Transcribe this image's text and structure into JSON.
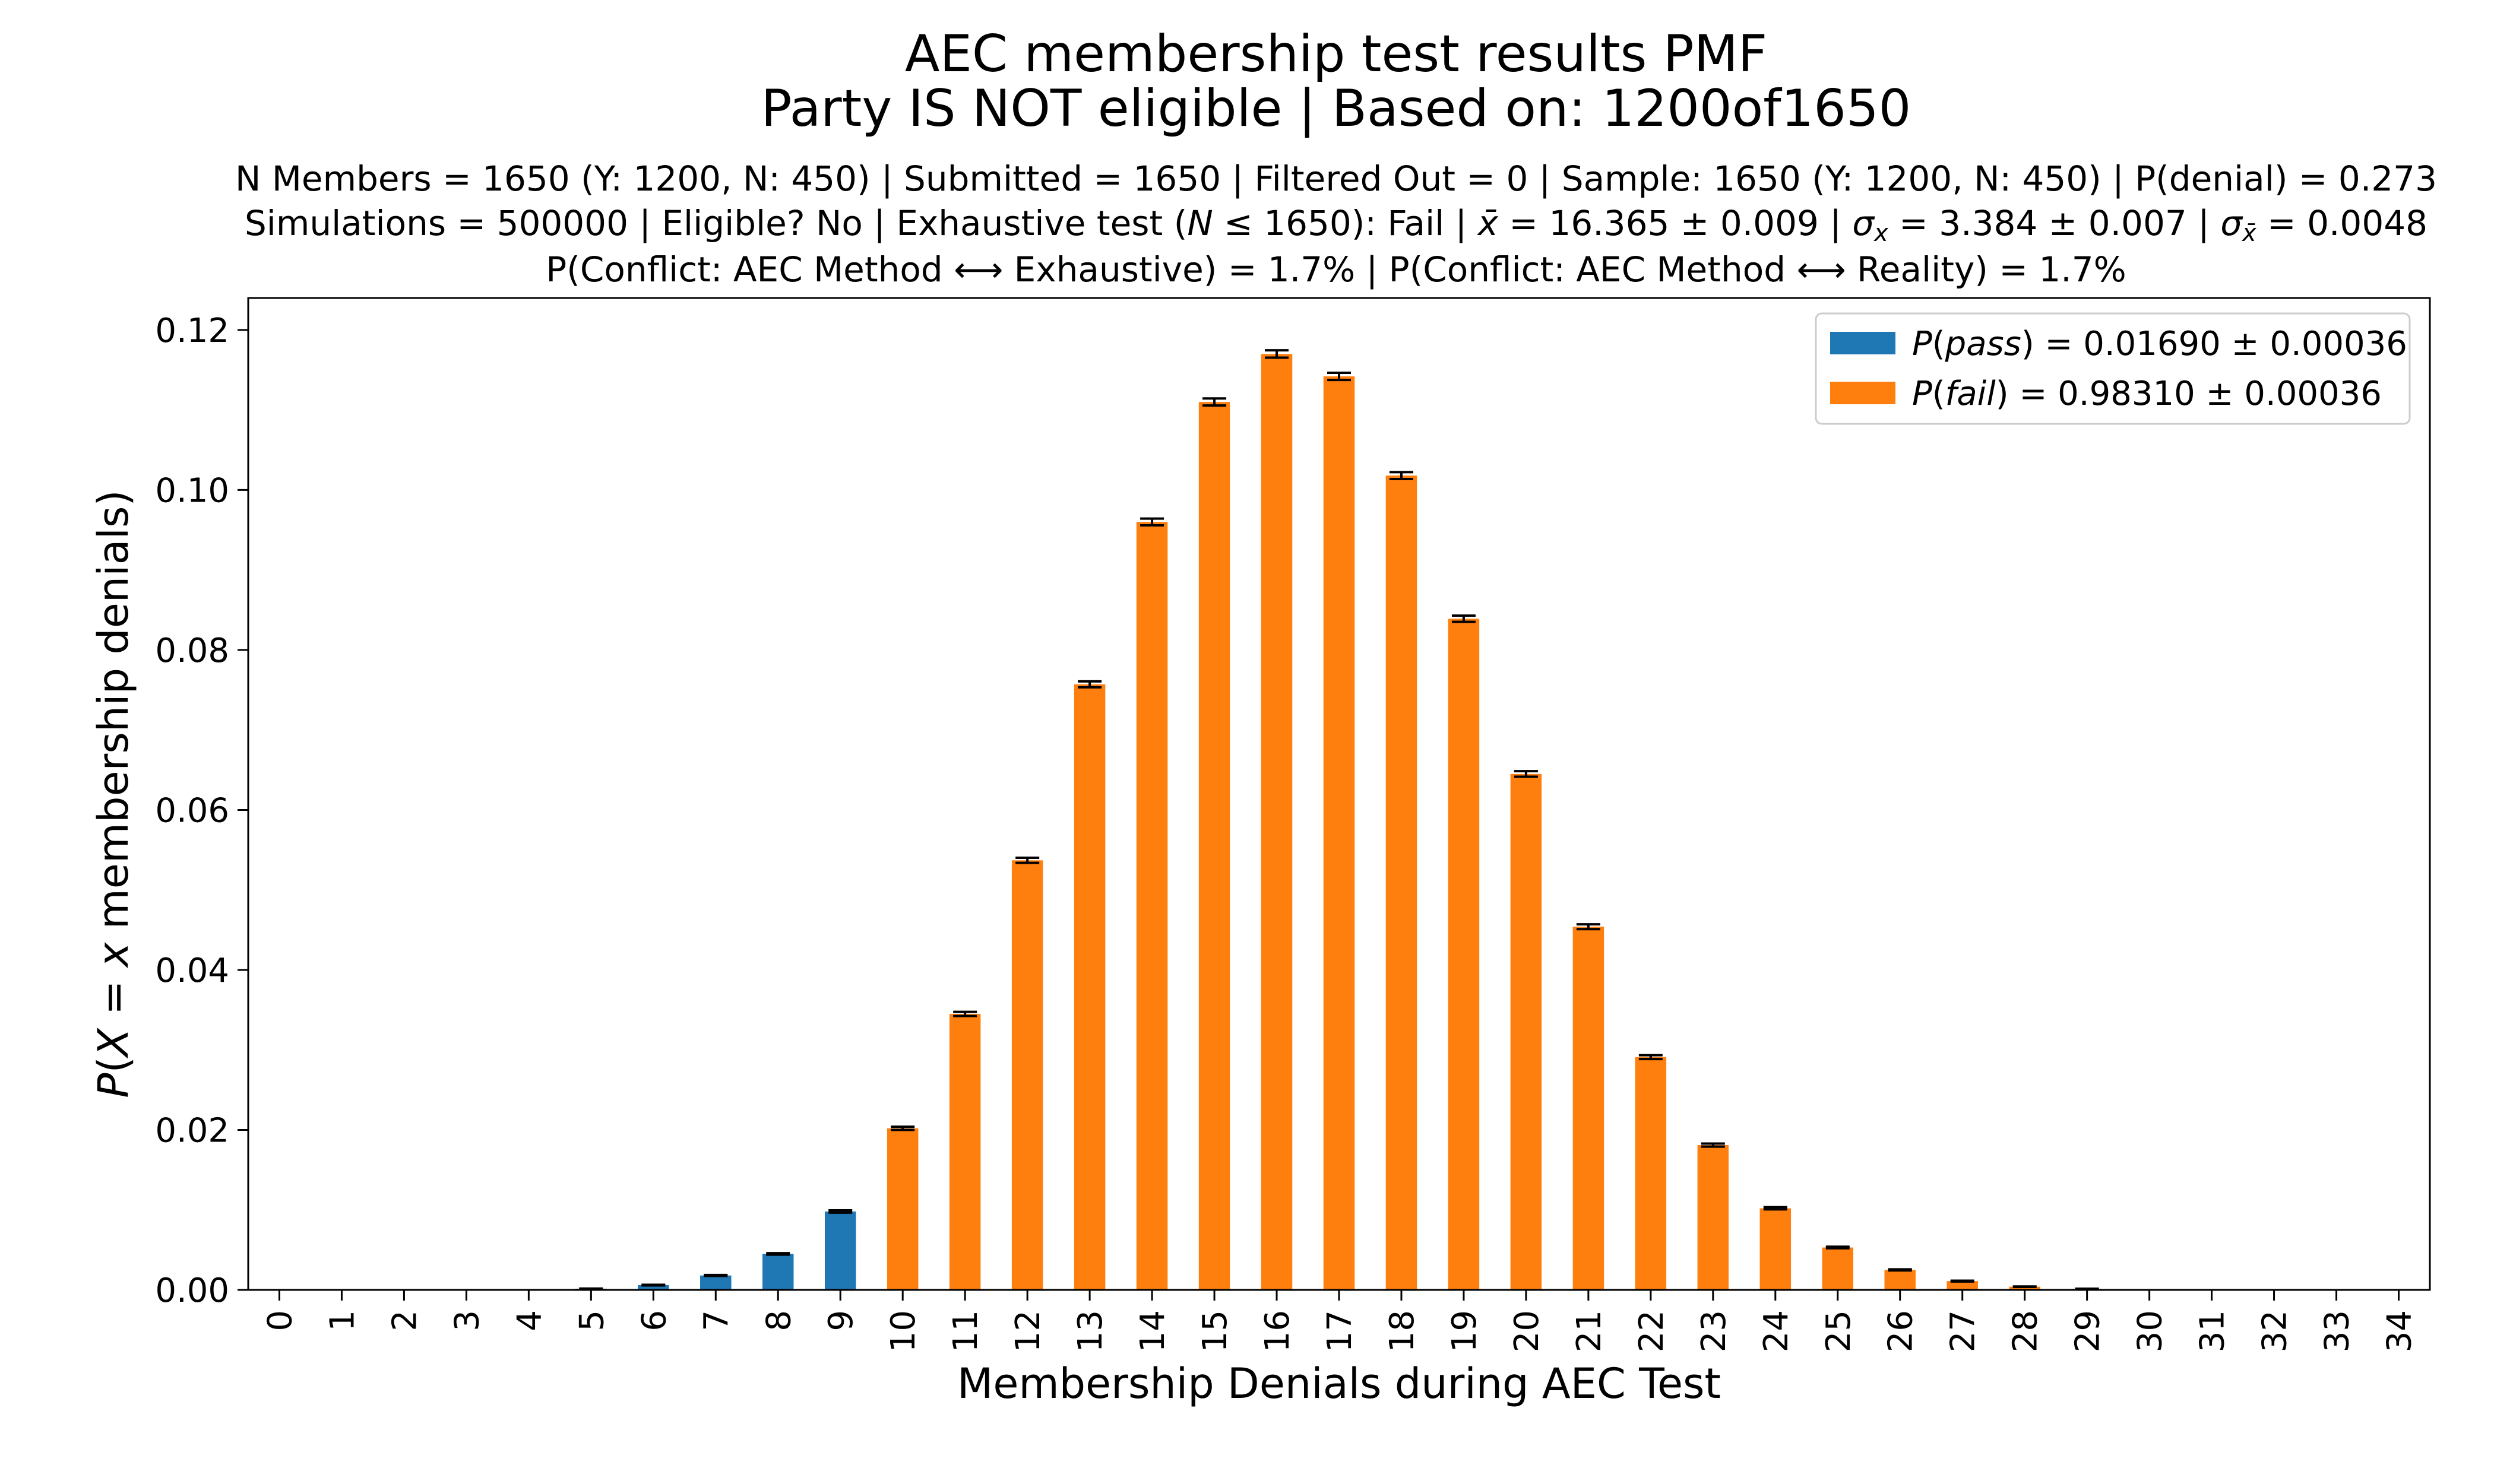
{
  "chart_data": {
    "type": "bar",
    "title": "AEC membership test results PMF",
    "subtitle": "Party IS NOT eligible | Based on: 1200of1650",
    "info_line_1": "N Members = 1650 (Y: 1200, N: 450) | Submitted = 1650 | Filtered Out = 0 | Sample: 1650 (Y: 1200, N: 450) | P(denial) = 0.273",
    "info_line_2": {
      "prefix": "Simulations = 500000 | Eligible? No | Exhaustive test (",
      "n_symbol": "N",
      "n_rel": " ≤ 1650): Fail | ",
      "xbar_symbol": "x̄",
      "xbar_value": " = 16.365 ± 0.009 | ",
      "sigma_x_symbol": "σ",
      "sigma_x_sub": "x",
      "sigma_x_value": " = 3.384 ± 0.007 | ",
      "sigma_xbar_symbol": "σ",
      "sigma_xbar_sub": "x̄",
      "sigma_xbar_value": " = 0.0048"
    },
    "info_line_3": "P(Conflict: AEC Method ⟷ Exhaustive) = 1.7% | P(Conflict: AEC Method ⟷ Reality) = 1.7%",
    "xlabel": "Membership Denials during AEC Test",
    "ylabel": "P(X = x membership denials)",
    "ylim": [
      0,
      0.124
    ],
    "yticks": [
      "0.00",
      "0.02",
      "0.04",
      "0.06",
      "0.08",
      "0.10",
      "0.12"
    ],
    "categories": [
      "0",
      "1",
      "2",
      "3",
      "4",
      "5",
      "6",
      "7",
      "8",
      "9",
      "10",
      "11",
      "12",
      "13",
      "14",
      "15",
      "16",
      "17",
      "18",
      "19",
      "20",
      "21",
      "22",
      "23",
      "24",
      "25",
      "26",
      "27",
      "28",
      "29",
      "30",
      "31",
      "32",
      "33",
      "34"
    ],
    "values": [
      0,
      0,
      0,
      0,
      3e-05,
      0.00015,
      0.0006,
      0.0018,
      0.0045,
      0.0098,
      0.0202,
      0.0345,
      0.0537,
      0.0757,
      0.096,
      0.111,
      0.117,
      0.1142,
      0.1018,
      0.0839,
      0.0645,
      0.0454,
      0.0291,
      0.0181,
      0.0102,
      0.0053,
      0.0025,
      0.0011,
      0.0004,
      0.00013,
      4e-05,
      1e-05,
      0,
      0,
      0
    ],
    "errors": [
      0,
      0,
      0,
      0,
      1e-05,
      2e-05,
      4e-05,
      6e-05,
      9e-05,
      0.00014,
      0.0002,
      0.00026,
      0.00032,
      0.00037,
      0.00042,
      0.00044,
      0.00046,
      0.00045,
      0.00043,
      0.00039,
      0.00035,
      0.0003,
      0.00024,
      0.00019,
      0.00014,
      0.0001,
      7e-05,
      5e-05,
      3e-05,
      2e-05,
      1e-05,
      0,
      0,
      0,
      0
    ],
    "pass_max_x": 9,
    "series": [
      {
        "name_math": "P(pass) = 0.01690 ± 0.00036",
        "name_pre": "P(",
        "name_var": "pass",
        "name_post": ") = 0.01690 ± 0.00036",
        "color": "#1f77b4"
      },
      {
        "name_math": "P(fail) = 0.98310 ± 0.00036",
        "name_pre": "P(",
        "name_var": "fail",
        "name_post": ") = 0.98310 ± 0.00036",
        "color": "#ff7f0e"
      }
    ],
    "legend_position": "top-right",
    "grid": false
  }
}
